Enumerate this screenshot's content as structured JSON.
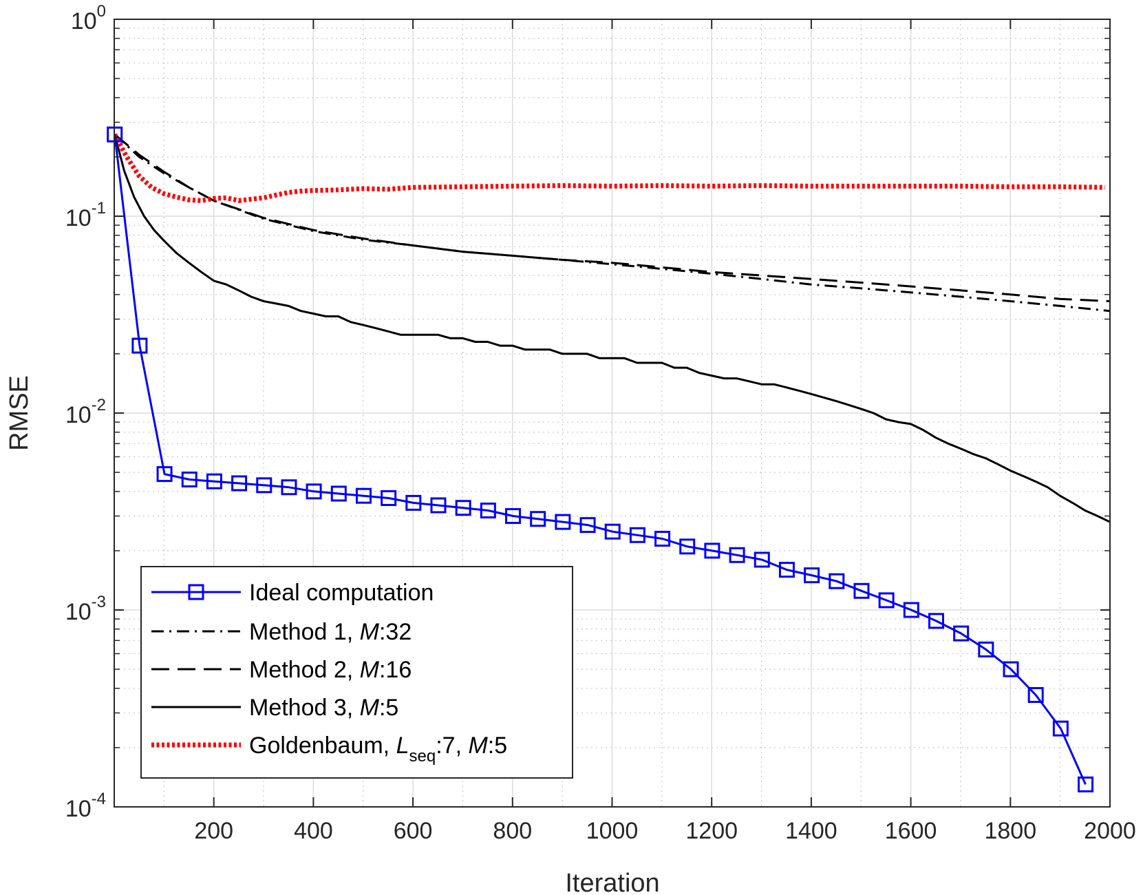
{
  "chart_data": {
    "type": "line",
    "xlabel": "Iteration",
    "ylabel": "RMSE",
    "xlim": [
      0,
      2000
    ],
    "ylim": [
      0.0001,
      1
    ],
    "yscale": "log",
    "grid": true,
    "x_ticks": [
      200,
      400,
      600,
      800,
      1000,
      1200,
      1400,
      1600,
      1800,
      2000
    ],
    "x_tick_labels": [
      "200",
      "400",
      "600",
      "800",
      "1000",
      "1200",
      "1400",
      "1600",
      "1800",
      "2000"
    ],
    "y_ticks": [
      {
        "value": 1,
        "base": "10",
        "exp": "0"
      },
      {
        "value": 0.1,
        "base": "10",
        "exp": "-1"
      },
      {
        "value": 0.01,
        "base": "10",
        "exp": "-2"
      },
      {
        "value": 0.001,
        "base": "10",
        "exp": "-3"
      },
      {
        "value": 0.0001,
        "base": "10",
        "exp": "-4"
      }
    ],
    "legend_position": "bottom-left",
    "series": [
      {
        "name": "Ideal computation",
        "legend": {
          "pre": "Ideal computation",
          "italic": "",
          "post": "",
          "sub": "",
          "post2": "",
          "italic2": "",
          "post3": ""
        },
        "color": "#0000ff",
        "style": "solid-square",
        "x": [
          1,
          51,
          101,
          151,
          201,
          251,
          301,
          351,
          401,
          451,
          501,
          551,
          601,
          651,
          701,
          751,
          801,
          851,
          901,
          951,
          1001,
          1051,
          1101,
          1151,
          1201,
          1251,
          1301,
          1351,
          1401,
          1451,
          1501,
          1551,
          1601,
          1651,
          1701,
          1751,
          1801,
          1851,
          1901,
          1951
        ],
        "y": [
          0.26,
          0.022,
          0.0049,
          0.0046,
          0.0045,
          0.0044,
          0.0043,
          0.0042,
          0.004,
          0.0039,
          0.0038,
          0.0037,
          0.0035,
          0.0034,
          0.0033,
          0.0032,
          0.003,
          0.0029,
          0.0028,
          0.0027,
          0.0025,
          0.0024,
          0.0023,
          0.0021,
          0.002,
          0.0019,
          0.0018,
          0.0016,
          0.0015,
          0.0014,
          0.00125,
          0.00112,
          0.001,
          0.00088,
          0.00076,
          0.00063,
          0.0005,
          0.00037,
          0.00025,
          0.00013
        ]
      },
      {
        "name": "Method 1, M:32",
        "legend": {
          "pre": "Method 1, ",
          "italic": "M",
          "post": ":32",
          "sub": "",
          "post2": "",
          "italic2": "",
          "post3": ""
        },
        "color": "#000000",
        "style": "dashdot",
        "x": [
          1,
          50,
          100,
          150,
          200,
          300,
          400,
          500,
          600,
          700,
          800,
          900,
          1000,
          1100,
          1200,
          1300,
          1400,
          1500,
          1600,
          1700,
          1800,
          1900,
          2000
        ],
        "y": [
          0.26,
          0.2,
          0.165,
          0.14,
          0.12,
          0.097,
          0.084,
          0.076,
          0.071,
          0.066,
          0.063,
          0.06,
          0.057,
          0.054,
          0.051,
          0.048,
          0.045,
          0.043,
          0.041,
          0.039,
          0.037,
          0.035,
          0.033
        ]
      },
      {
        "name": "Method 2, M:16",
        "legend": {
          "pre": "Method 2, ",
          "italic": "M",
          "post": ":16",
          "sub": "",
          "post2": "",
          "italic2": "",
          "post3": ""
        },
        "color": "#000000",
        "style": "dashed",
        "x": [
          1,
          50,
          100,
          150,
          200,
          300,
          400,
          500,
          600,
          700,
          800,
          900,
          1000,
          1100,
          1200,
          1300,
          1400,
          1500,
          1600,
          1700,
          1800,
          1900,
          2000
        ],
        "y": [
          0.26,
          0.205,
          0.168,
          0.14,
          0.12,
          0.098,
          0.085,
          0.077,
          0.071,
          0.066,
          0.063,
          0.06,
          0.058,
          0.055,
          0.052,
          0.05,
          0.048,
          0.046,
          0.044,
          0.042,
          0.04,
          0.038,
          0.037
        ]
      },
      {
        "name": "Method 3, M:5",
        "legend": {
          "pre": "Method 3, ",
          "italic": "M",
          "post": ":5",
          "sub": "",
          "post2": "",
          "italic2": "",
          "post3": ""
        },
        "color": "#000000",
        "style": "solid",
        "x": [
          1,
          20,
          40,
          60,
          80,
          100,
          125,
          150,
          175,
          200,
          225,
          250,
          275,
          300,
          325,
          350,
          375,
          400,
          425,
          450,
          475,
          500,
          525,
          550,
          575,
          600,
          625,
          650,
          675,
          700,
          725,
          750,
          775,
          800,
          825,
          850,
          875,
          900,
          925,
          950,
          975,
          1000,
          1025,
          1050,
          1075,
          1100,
          1125,
          1150,
          1175,
          1200,
          1225,
          1250,
          1275,
          1300,
          1325,
          1350,
          1375,
          1400,
          1425,
          1450,
          1475,
          1500,
          1525,
          1550,
          1575,
          1600,
          1625,
          1650,
          1675,
          1700,
          1725,
          1750,
          1775,
          1800,
          1825,
          1850,
          1875,
          1900,
          1925,
          1950,
          1975,
          2000
        ],
        "y": [
          0.26,
          0.17,
          0.125,
          0.1,
          0.085,
          0.075,
          0.065,
          0.058,
          0.052,
          0.047,
          0.045,
          0.042,
          0.039,
          0.037,
          0.036,
          0.035,
          0.033,
          0.032,
          0.031,
          0.031,
          0.029,
          0.028,
          0.027,
          0.026,
          0.025,
          0.025,
          0.025,
          0.025,
          0.024,
          0.024,
          0.023,
          0.023,
          0.022,
          0.022,
          0.021,
          0.021,
          0.021,
          0.02,
          0.02,
          0.02,
          0.019,
          0.019,
          0.019,
          0.018,
          0.018,
          0.018,
          0.017,
          0.017,
          0.016,
          0.0155,
          0.015,
          0.015,
          0.0145,
          0.014,
          0.014,
          0.0135,
          0.013,
          0.0125,
          0.012,
          0.0115,
          0.011,
          0.0105,
          0.01,
          0.0093,
          0.009,
          0.0088,
          0.0082,
          0.0075,
          0.007,
          0.0066,
          0.0062,
          0.0059,
          0.0055,
          0.0051,
          0.0048,
          0.0045,
          0.0042,
          0.0038,
          0.0035,
          0.0032,
          0.003,
          0.0028
        ]
      },
      {
        "name": "Goldenbaum, Lseq:7, M:5",
        "legend": {
          "pre": "Goldenbaum, ",
          "italic": "L",
          "post": "",
          "sub": "seq",
          "post2": ":7, ",
          "italic2": "M",
          "post3": ":5"
        },
        "color": "#ff0000",
        "style": "dotted-thick",
        "x": [
          1,
          25,
          50,
          75,
          100,
          125,
          150,
          175,
          200,
          225,
          250,
          275,
          300,
          325,
          350,
          375,
          400,
          450,
          500,
          550,
          600,
          700,
          800,
          900,
          1000,
          1100,
          1200,
          1300,
          1400,
          1500,
          1600,
          1700,
          1800,
          1900,
          1990
        ],
        "y": [
          0.26,
          0.2,
          0.16,
          0.14,
          0.13,
          0.125,
          0.121,
          0.12,
          0.123,
          0.124,
          0.12,
          0.122,
          0.124,
          0.128,
          0.132,
          0.134,
          0.135,
          0.136,
          0.138,
          0.137,
          0.14,
          0.141,
          0.142,
          0.143,
          0.142,
          0.143,
          0.142,
          0.143,
          0.142,
          0.142,
          0.142,
          0.142,
          0.141,
          0.141,
          0.14
        ]
      }
    ]
  }
}
